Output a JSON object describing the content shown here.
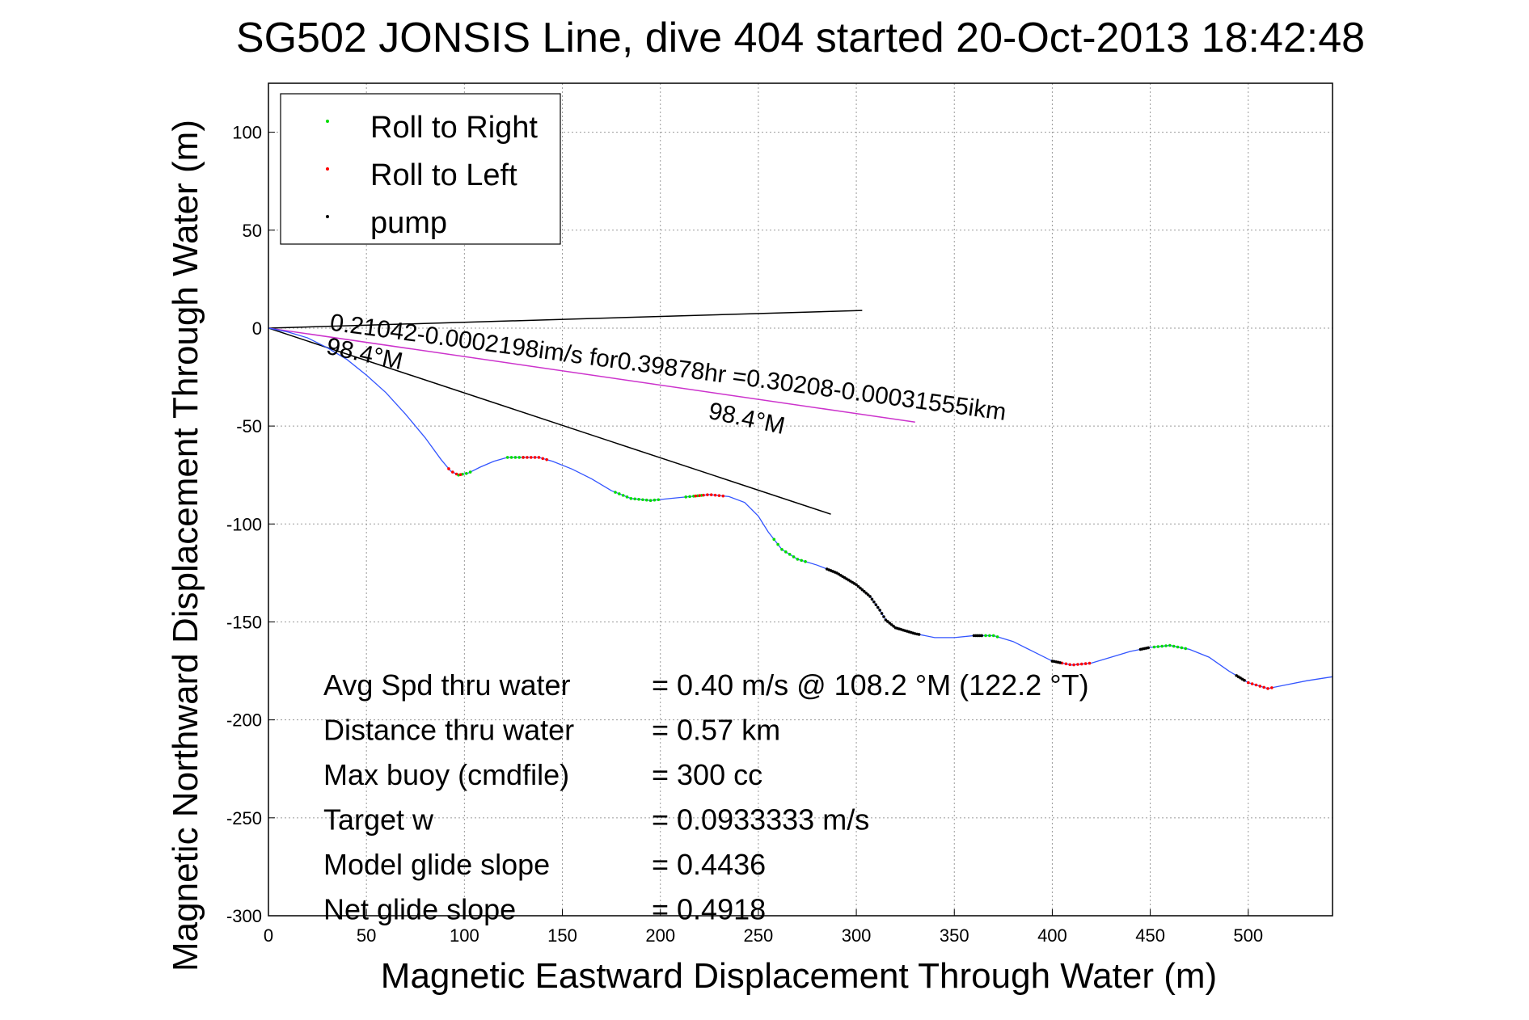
{
  "chart_data": {
    "type": "scatter",
    "title": "SG502 JONSIS Line, dive 404 started 20-Oct-2013 18:42:48",
    "xlabel": "Magnetic Eastward Displacement Through Water (m)",
    "ylabel": "Magnetic Northward Displacement Through Water (m)",
    "xlim": [
      0,
      543
    ],
    "ylim": [
      -300,
      125
    ],
    "grid": true,
    "x_ticks": [
      0,
      50,
      100,
      150,
      200,
      250,
      300,
      350,
      400,
      450,
      500
    ],
    "y_ticks": [
      100,
      50,
      0,
      -50,
      -100,
      -150,
      -200,
      -250,
      -300
    ],
    "legend": {
      "placement": "top-left",
      "entries": [
        {
          "label": "Roll to Right",
          "color": "#00dd00"
        },
        {
          "label": "Roll to Left",
          "color": "#ff0000"
        },
        {
          "label": "pump",
          "color": "#000000"
        }
      ]
    },
    "track": {
      "color": "#3355ff",
      "points": [
        [
          0,
          0
        ],
        [
          10,
          -2
        ],
        [
          20,
          -5
        ],
        [
          30,
          -10
        ],
        [
          40,
          -16
        ],
        [
          50,
          -24
        ],
        [
          60,
          -33
        ],
        [
          70,
          -44
        ],
        [
          80,
          -56
        ],
        [
          88,
          -67
        ],
        [
          93,
          -73
        ],
        [
          97,
          -75
        ],
        [
          102,
          -74
        ],
        [
          108,
          -71
        ],
        [
          115,
          -68
        ],
        [
          122,
          -66
        ],
        [
          130,
          -66
        ],
        [
          138,
          -66
        ],
        [
          145,
          -68
        ],
        [
          155,
          -72
        ],
        [
          165,
          -77
        ],
        [
          175,
          -83
        ],
        [
          185,
          -87
        ],
        [
          195,
          -88
        ],
        [
          205,
          -87
        ],
        [
          215,
          -86
        ],
        [
          225,
          -85
        ],
        [
          235,
          -86
        ],
        [
          243,
          -89
        ],
        [
          250,
          -96
        ],
        [
          255,
          -104
        ],
        [
          262,
          -113
        ],
        [
          270,
          -118
        ],
        [
          280,
          -121
        ],
        [
          290,
          -125
        ],
        [
          300,
          -131
        ],
        [
          307,
          -137
        ],
        [
          312,
          -144
        ],
        [
          315,
          -149
        ],
        [
          320,
          -153
        ],
        [
          330,
          -156
        ],
        [
          340,
          -158
        ],
        [
          350,
          -158
        ],
        [
          360,
          -157
        ],
        [
          370,
          -157
        ],
        [
          380,
          -160
        ],
        [
          390,
          -165
        ],
        [
          400,
          -170
        ],
        [
          410,
          -172
        ],
        [
          420,
          -171
        ],
        [
          430,
          -168
        ],
        [
          440,
          -165
        ],
        [
          450,
          -163
        ],
        [
          460,
          -162
        ],
        [
          470,
          -164
        ],
        [
          480,
          -168
        ],
        [
          490,
          -175
        ],
        [
          500,
          -181
        ],
        [
          510,
          -184
        ],
        [
          520,
          -182
        ],
        [
          530,
          -180
        ],
        [
          543,
          -178
        ]
      ]
    },
    "roll_right_x": [
      [
        97,
        103
      ],
      [
        122,
        130
      ],
      [
        177,
        200
      ],
      [
        213,
        222
      ],
      [
        258,
        275
      ],
      [
        362,
        372
      ],
      [
        452,
        468
      ]
    ],
    "roll_left_x": [
      [
        92,
        98
      ],
      [
        130,
        142
      ],
      [
        218,
        233
      ],
      [
        403,
        420
      ],
      [
        498,
        512
      ]
    ],
    "pump_x": [
      [
        285,
        332
      ],
      [
        360,
        364
      ],
      [
        400,
        404
      ],
      [
        445,
        449
      ],
      [
        494,
        498
      ]
    ],
    "lines": [
      {
        "name": "heading",
        "color": "#000000",
        "points": [
          [
            0,
            0
          ],
          [
            303,
            9
          ]
        ]
      },
      {
        "name": "depth-averaged current",
        "color": "#cc33cc",
        "points": [
          [
            0,
            0
          ],
          [
            330,
            -48
          ]
        ]
      },
      {
        "name": "thru-water displacement",
        "color": "#000000",
        "points": [
          [
            0,
            0
          ],
          [
            287,
            -95
          ]
        ]
      }
    ],
    "annotations": [
      {
        "text": "0.21042-0.0002198im/s for0.39878hr =0.30208-0.00031555ikm",
        "x": 31,
        "y": -1,
        "angle": 7.6,
        "size": 30
      },
      {
        "text": "98.4°M",
        "x": 29,
        "y": -13,
        "angle": 12,
        "size": 30
      },
      {
        "text": "98.4°M",
        "x": 224,
        "y": -46,
        "angle": 12,
        "size": 30
      }
    ],
    "stats": [
      {
        "label": "Avg Spd thru water",
        "value": "=  0.40 m/s @ 108.2 °M (122.2 °T)"
      },
      {
        "label": "Distance thru water",
        "value": "=  0.57 km"
      },
      {
        "label": "Max buoy (cmdfile)",
        "value": "= 300 cc"
      },
      {
        "label": "Target w",
        "value": "= 0.0933333 m/s"
      },
      {
        "label": "Model glide slope",
        "value": "= 0.4436"
      },
      {
        "label": "Net glide slope",
        "value": "= 0.4918"
      }
    ]
  }
}
